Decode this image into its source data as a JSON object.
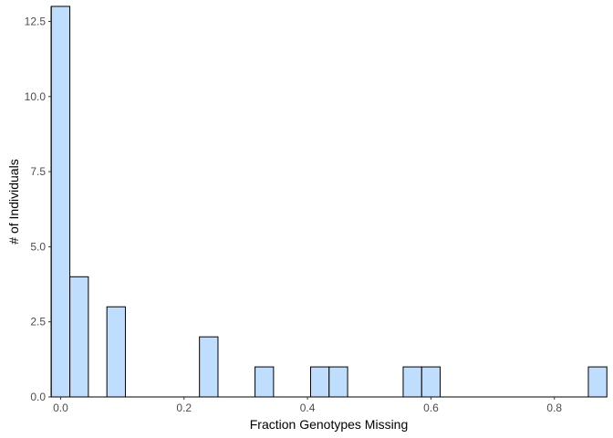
{
  "chart_data": {
    "type": "bar",
    "subtype": "histogram",
    "title": "",
    "xlabel": "Fraction Genotypes Missing",
    "ylabel": "# of Individuals",
    "xlim": [
      -0.0154,
      0.8846
    ],
    "ylim": [
      0,
      13
    ],
    "xticks": [
      {
        "value": 0.0,
        "label": "0.0"
      },
      {
        "value": 0.2,
        "label": "0.2"
      },
      {
        "value": 0.4,
        "label": "0.4"
      },
      {
        "value": 0.6,
        "label": "0.6"
      },
      {
        "value": 0.8,
        "label": "0.8"
      }
    ],
    "yticks": [
      {
        "value": 0.0,
        "label": "0.0"
      },
      {
        "value": 2.5,
        "label": "2.5"
      },
      {
        "value": 5.0,
        "label": "5.0"
      },
      {
        "value": 7.5,
        "label": "7.5"
      },
      {
        "value": 10.0,
        "label": "10.0"
      },
      {
        "value": 12.5,
        "label": "12.5"
      }
    ],
    "bin_width": 0.03,
    "bars": [
      {
        "x0": -0.015,
        "x1": 0.015,
        "count": 13
      },
      {
        "x0": 0.015,
        "x1": 0.045,
        "count": 4
      },
      {
        "x0": 0.075,
        "x1": 0.105,
        "count": 3
      },
      {
        "x0": 0.225,
        "x1": 0.255,
        "count": 2
      },
      {
        "x0": 0.315,
        "x1": 0.345,
        "count": 1
      },
      {
        "x0": 0.405,
        "x1": 0.435,
        "count": 1
      },
      {
        "x0": 0.435,
        "x1": 0.465,
        "count": 1
      },
      {
        "x0": 0.555,
        "x1": 0.585,
        "count": 1
      },
      {
        "x0": 0.585,
        "x1": 0.615,
        "count": 1
      },
      {
        "x0": 0.855,
        "x1": 0.885,
        "count": 1
      }
    ],
    "bar_fill": "#bfdefe",
    "bar_stroke": "#000000",
    "grid": false,
    "legend": "none"
  }
}
